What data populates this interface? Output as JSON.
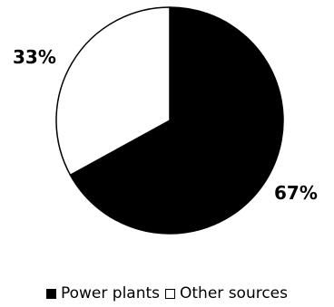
{
  "chart_data": {
    "type": "pie",
    "title": "",
    "slices": [
      {
        "name": "Power plants",
        "value": 67,
        "label": "67%",
        "color": "#000000"
      },
      {
        "name": "Other sources",
        "value": 33,
        "label": "33%",
        "color": "#ffffff"
      }
    ],
    "legend_position": "bottom",
    "start_angle": "12 o'clock",
    "direction": "clockwise"
  }
}
